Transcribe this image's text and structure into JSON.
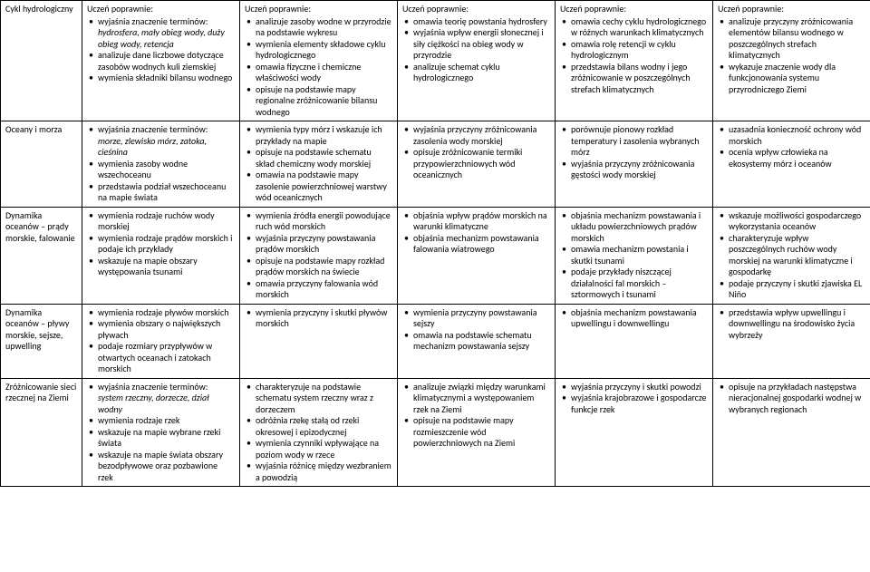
{
  "header": "Uczeń poprawnie:",
  "rows": [
    {
      "label": "Cykl hydrologiczny",
      "cols": [
        [
          {
            "t": "wyjaśnia znaczenie terminów: ",
            "i": "hydrosfera, mały obieg wody, duży obieg wody, retencja"
          },
          {
            "t": "analizuje dane liczbowe dotyczące zasobów wodnych kuli ziemskiej"
          },
          {
            "t": "wymienia składniki bilansu wodnego"
          }
        ],
        [
          {
            "t": "analizuje zasoby wodne w przyrodzie na podstawie wykresu"
          },
          {
            "t": "wymienia elementy składowe cyklu hydrologicznego"
          },
          {
            "t": "omawia fizyczne i chemiczne właściwości wody"
          },
          {
            "t": "opisuje na podstawie mapy regionalne zróżnicowanie bilansu wodnego"
          }
        ],
        [
          {
            "t": "omawia teorię powstania hydrosfery"
          },
          {
            "t": "wyjaśnia wpływ energii słonecznej i siły ciężkości na obieg wody w przyrodzie"
          },
          {
            "t": "analizuje schemat cyklu hydrologicznego"
          }
        ],
        [
          {
            "t": "omawia cechy cyklu hydrologicznego w różnych warunkach klimatycznych"
          },
          {
            "t": "omawia rolę retencji w cyklu hydrologicznym"
          },
          {
            "t": "przedstawia bilans wodny i jego zróżnicowanie w poszczególnych strefach klimatycznych"
          }
        ],
        [
          {
            "t": "analizuje przyczyny zróżnicowania elementów bilansu wodnego w poszczególnych strefach klimatycznych"
          },
          {
            "t": "wykazuje znaczenie wody dla funkcjonowania systemu przyrodniczego Ziemi"
          }
        ]
      ]
    },
    {
      "label": "Oceany i morza",
      "cols": [
        [
          {
            "t": "wyjaśnia znaczenie terminów: ",
            "i": "morze, zlewisko mórz, zatoka, cieśnina"
          },
          {
            "t": "wymienia zasoby wodne wszechoceanu"
          },
          {
            "t": "przedstawia podział wszechoceanu na mapie świata"
          }
        ],
        [
          {
            "t": "wymienia typy mórz i wskazuje ich przykłady na mapie"
          },
          {
            "t": "opisuje na podstawie schematu skład chemiczny wody morskiej"
          },
          {
            "t": "omawia na podstawie mapy zasolenie powierzchniowej warstwy wód oceanicznych"
          }
        ],
        [
          {
            "t": "wyjaśnia przyczyny zróżnicowania zasolenia wody morskiej"
          },
          {
            "t": "opisuje zróżnicowanie termiki przypowierzchniowych wód oceanicznych"
          }
        ],
        [
          {
            "t": "porównuje pionowy rozkład temperatury i zasolenia wybranych mórz"
          },
          {
            "t": "wyjaśnia przyczyny zróżnicowania gęstości wody morskiej"
          }
        ],
        [
          {
            "t": "uzasadnia konieczność ochrony wód morskich"
          },
          {
            "t": "ocenia wpływ człowieka na ekosystemy mórz i oceanów"
          }
        ]
      ]
    },
    {
      "label": "Dynamika oceanów – prądy morskie, falowanie",
      "cols": [
        [
          {
            "t": "wymienia rodzaje ruchów wody morskiej"
          },
          {
            "t": "wymienia rodzaje prądów morskich i podaje ich przykłady"
          },
          {
            "t": "wskazuje na mapie obszary występowania tsunami"
          }
        ],
        [
          {
            "t": "wymienia źródła energii powodujące ruch wód morskich"
          },
          {
            "t": "wyjaśnia przyczyny powstawania prądów morskich"
          },
          {
            "t": "opisuje na podstawie mapy rozkład prądów morskich na świecie"
          },
          {
            "t": "omawia przyczyny falowania wód morskich"
          }
        ],
        [
          {
            "t": "objaśnia wpływ prądów morskich na warunki klimatyczne"
          },
          {
            "t": "objaśnia mechanizm powstawania falowania wiatrowego"
          }
        ],
        [
          {
            "t": "objaśnia mechanizm powstawania i układu powierzchniowych prądów morskich"
          },
          {
            "t": "omawia mechanizm powstania i skutki tsunami"
          },
          {
            "t": "podaje przykłady niszczącej działalności fal morskich – sztormowych i tsunami"
          }
        ],
        [
          {
            "t": "wskazuje możliwości gospodarczego wykorzystania oceanów"
          },
          {
            "t": "charakteryzuje wpływ poszczególnych ruchów wody morskiej na warunki klimatyczne i gospodarkę"
          },
          {
            "t": "podaje przyczyny i skutki zjawiska EL Niño"
          }
        ]
      ]
    },
    {
      "label": "Dynamika oceanów – pływy morskie, sejsze, upwelling",
      "cols": [
        [
          {
            "t": "wymienia rodzaje pływów morskich"
          },
          {
            "t": "wymienia obszary o największych pływach"
          },
          {
            "t": "podaje rozmiary przypływów w otwartych oceanach i zatokach morskich"
          }
        ],
        [
          {
            "t": "wymienia przyczyny i skutki pływów morskich"
          }
        ],
        [
          {
            "t": "wymienia przyczyny powstawania sejszy"
          },
          {
            "t": "omawia na podstawie schematu mechanizm powstawania sejszy"
          }
        ],
        [
          {
            "t": "objaśnia mechanizm powstawania upwellingu i downwellingu"
          }
        ],
        [
          {
            "t": "przedstawia wpływ upwellingu i downwellingu na środowisko życia wybrzeży"
          }
        ]
      ]
    },
    {
      "label": "Zróżnicowanie sieci rzecznej na Ziemi",
      "cols": [
        [
          {
            "t": "wyjaśnia znaczenie terminów: ",
            "i": "system rzeczny, dorzecze, dział wodny"
          },
          {
            "t": "wymienia rodzaje rzek"
          },
          {
            "t": "wskazuje na mapie wybrane rzeki świata"
          },
          {
            "t": "wskazuje na mapie świata obszary bezodpływowe oraz pozbawione rzek"
          }
        ],
        [
          {
            "t": "charakteryzuje na podstawie schematu system rzeczny wraz z dorzeczem"
          },
          {
            "t": "odróżnia rzekę stałą od rzeki okresowej i epizodycznej"
          },
          {
            "t": "wymienia czynniki wpływające na poziom wody w rzece"
          },
          {
            "t": "wyjaśnia różnicę między wezbraniem a powodzią"
          }
        ],
        [
          {
            "t": "analizuje związki między warunkami klimatycznymi a występowaniem rzek na Ziemi"
          },
          {
            "t": "opisuje na podstawie mapy rozmieszczenie wód powierzchniowych na Ziemi"
          }
        ],
        [
          {
            "t": "wyjaśnia przyczyny i skutki powodzi"
          },
          {
            "t": "wyjaśnia krajobrazowe i gospodarcze funkcje rzek"
          }
        ],
        [
          {
            "t": "opisuje na przykładach następstwa nieracjonalnej gospodarki wodnej w wybranych regionach"
          }
        ]
      ]
    }
  ]
}
